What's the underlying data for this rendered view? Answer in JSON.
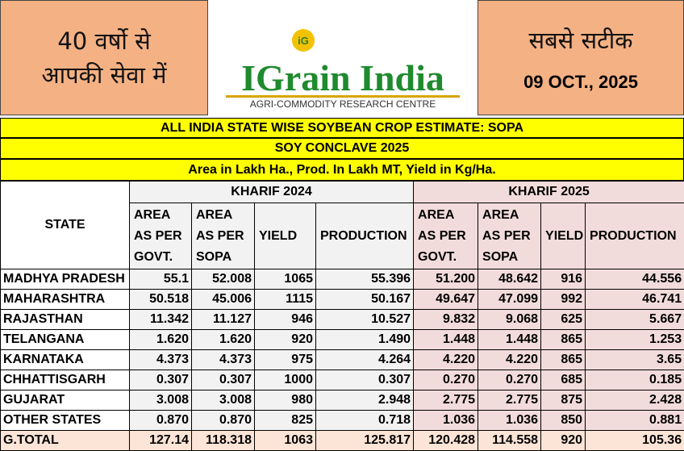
{
  "header": {
    "left_lines": [
      "40 वर्षो से",
      "आपकी सेवा में"
    ],
    "logo_title": "IGrain India",
    "logo_icon": "iG",
    "logo_subtitle": "AGRI-COMMODITY RESEARCH CENTRE",
    "right_title": "सबसे सटीक",
    "date": "09 OCT., 2025"
  },
  "titles": [
    "ALL INDIA STATE WISE SOYBEAN CROP ESTIMATE: SOPA",
    "SOY CONCLAVE 2025",
    "Area in Lakh Ha., Prod. In Lakh MT, Yield in Kg/Ha."
  ],
  "table": {
    "state_header": "STATE",
    "groups": [
      "KHARIF 2024",
      "KHARIF 2025"
    ],
    "columns": [
      [
        "AREA",
        "AS PER",
        "GOVT."
      ],
      [
        "AREA",
        "AS PER",
        "SOPA"
      ],
      [
        "YIELD"
      ],
      [
        "PRODUCTION"
      ],
      [
        "AREA",
        "AS PER",
        "GOVT."
      ],
      [
        "AREA",
        "AS PER",
        "SOPA"
      ],
      [
        "YIELD"
      ],
      [
        "PRODUCTION"
      ]
    ],
    "rows": [
      [
        "MADHYA PRADESH",
        "55.1",
        "52.008",
        "1065",
        "55.396",
        "51.200",
        "48.642",
        "916",
        "44.556"
      ],
      [
        "MAHARASHTRA",
        "50.518",
        "45.006",
        "1115",
        "50.167",
        "49.647",
        "47.099",
        "992",
        "46.741"
      ],
      [
        "RAJASTHAN",
        "11.342",
        "11.127",
        "946",
        "10.527",
        "9.832",
        "9.068",
        "625",
        "5.667"
      ],
      [
        "TELANGANA",
        "1.620",
        "1.620",
        "920",
        "1.490",
        "1.448",
        "1.448",
        "865",
        "1.253"
      ],
      [
        "KARNATAKA",
        "4.373",
        "4.373",
        "975",
        "4.264",
        "4.220",
        "4.220",
        "865",
        "3.65"
      ],
      [
        "CHHATTISGARH",
        "0.307",
        "0.307",
        "1000",
        "0.307",
        "0.270",
        "0.270",
        "685",
        "0.185"
      ],
      [
        "GUJARAT",
        "3.008",
        "3.008",
        "980",
        "2.948",
        "2.775",
        "2.775",
        "875",
        "2.428"
      ],
      [
        "OTHER STATES",
        "0.870",
        "0.870",
        "825",
        "0.718",
        "1.036",
        "1.036",
        "850",
        "0.881"
      ],
      [
        "G.TOTAL",
        "127.14",
        "118.318",
        "1063",
        "125.817",
        "120.428",
        "114.558",
        "920",
        "105.36"
      ]
    ]
  }
}
